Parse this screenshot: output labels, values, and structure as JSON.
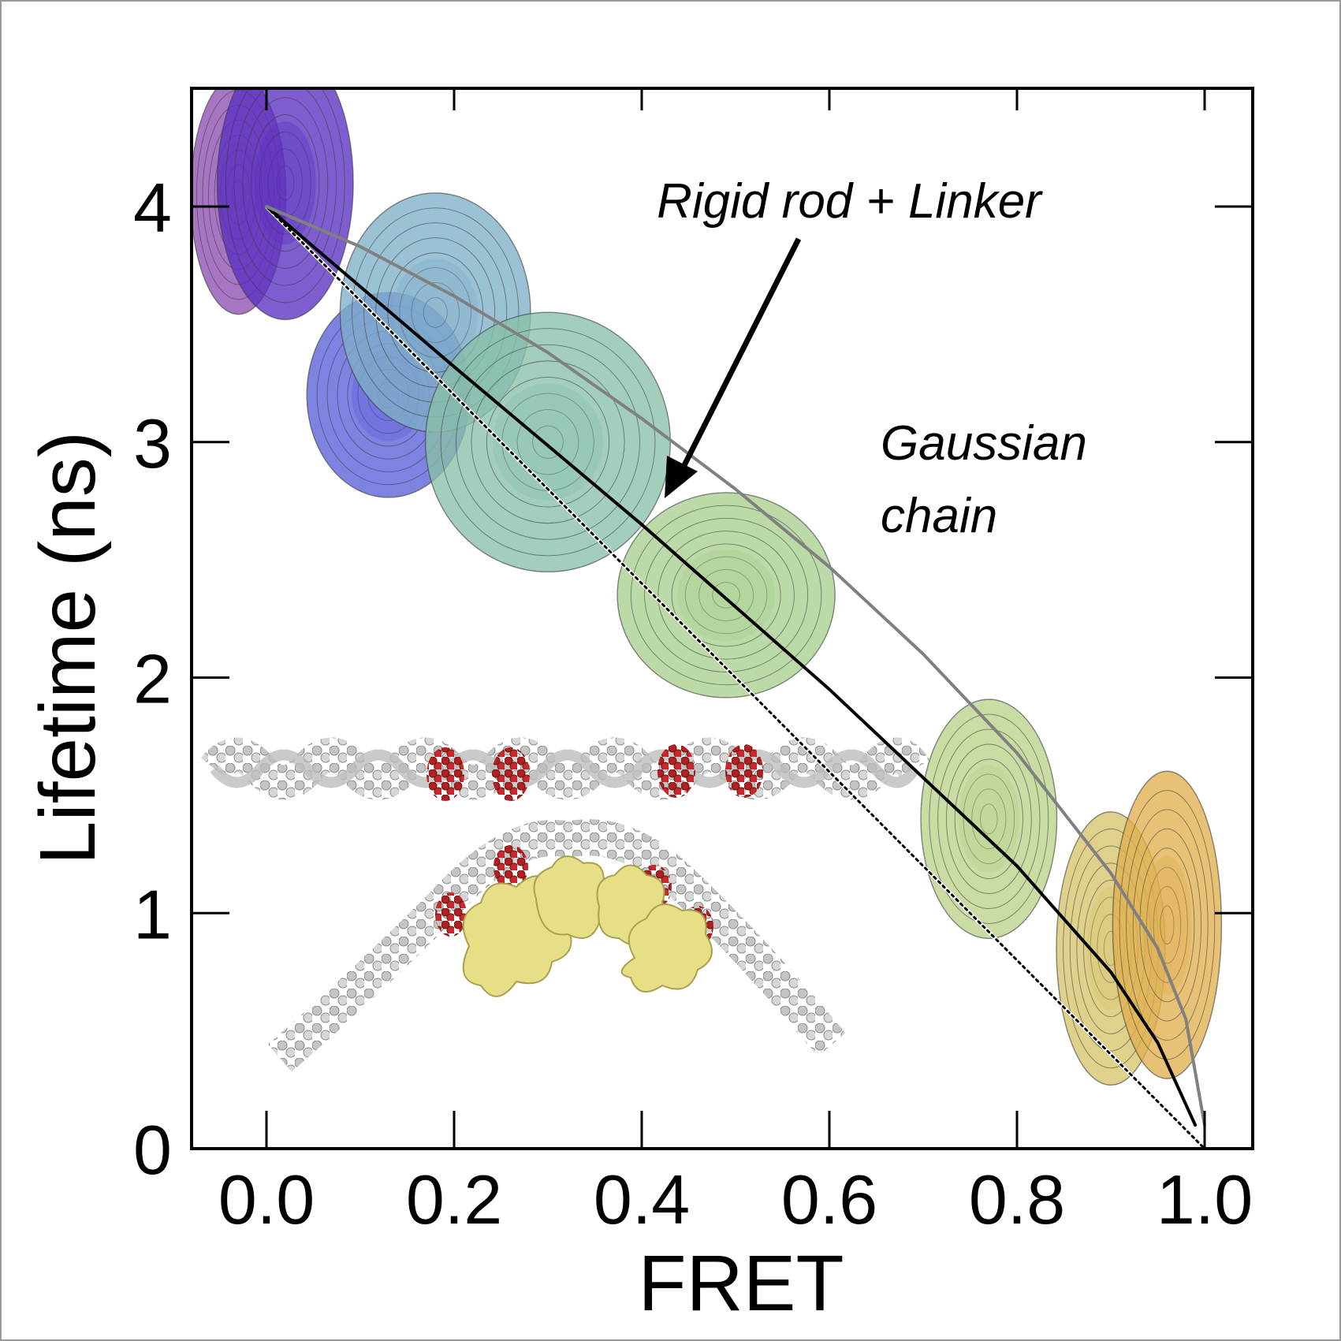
{
  "chart_data": {
    "type": "scatter",
    "title": "",
    "xlabel": "FRET",
    "ylabel": "Lifetime (ns)",
    "xlim": [
      -0.2,
      1.05
    ],
    "ylim": [
      0,
      4.5
    ],
    "x_ticks": [
      0.0,
      0.2,
      0.4,
      0.6,
      0.8,
      1.0
    ],
    "x_tick_labels": [
      "0.0",
      "0.2",
      "0.4",
      "0.6",
      "0.8",
      "1.0"
    ],
    "y_ticks": [
      0,
      1,
      2,
      3,
      4
    ],
    "y_tick_labels": [
      "0",
      "1",
      "2",
      "3",
      "4"
    ],
    "grid": false,
    "series": [
      {
        "style": "dotted",
        "color": "#000000",
        "x": [
          0.0,
          1.0
        ],
        "y": [
          4.0,
          0.0
        ]
      },
      {
        "name": "Rigid rod + Linker",
        "style": "solid",
        "color": "#000000",
        "x": [
          0.0,
          0.2,
          0.4,
          0.6,
          0.8,
          0.9,
          0.95,
          0.99
        ],
        "y": [
          4.0,
          3.32,
          2.65,
          1.95,
          1.2,
          0.75,
          0.45,
          0.1
        ]
      },
      {
        "name": "Gaussian chain",
        "style": "solid",
        "color": "#808080",
        "x": [
          0.0,
          0.1,
          0.2,
          0.3,
          0.4,
          0.5,
          0.6,
          0.7,
          0.8,
          0.9,
          0.95,
          0.98,
          1.0
        ],
        "y": [
          4.0,
          3.83,
          3.62,
          3.38,
          3.1,
          2.8,
          2.47,
          2.1,
          1.68,
          1.17,
          0.85,
          0.55,
          0.1
        ]
      }
    ],
    "populations": [
      {
        "color": "#8e4fb2",
        "center_fret": -0.03,
        "center_lifetime": 4.05,
        "sd_fret": 0.035,
        "sd_lifetime": 0.35
      },
      {
        "color": "#5a2fc0",
        "center_fret": 0.02,
        "center_lifetime": 4.1,
        "sd_fret": 0.05,
        "sd_lifetime": 0.4
      },
      {
        "color": "#5a5fd8",
        "center_fret": 0.13,
        "center_lifetime": 3.2,
        "sd_fret": 0.06,
        "sd_lifetime": 0.3
      },
      {
        "color": "#7fb0c8",
        "center_fret": 0.18,
        "center_lifetime": 3.55,
        "sd_fret": 0.07,
        "sd_lifetime": 0.35
      },
      {
        "color": "#88c0a8",
        "center_fret": 0.3,
        "center_lifetime": 3.0,
        "sd_fret": 0.09,
        "sd_lifetime": 0.38
      },
      {
        "color": "#a8cf8e",
        "center_fret": 0.49,
        "center_lifetime": 2.35,
        "sd_fret": 0.08,
        "sd_lifetime": 0.3
      },
      {
        "color": "#b8d28a",
        "center_fret": 0.77,
        "center_lifetime": 1.4,
        "sd_fret": 0.05,
        "sd_lifetime": 0.35
      },
      {
        "color": "#d6c46a",
        "center_fret": 0.9,
        "center_lifetime": 0.85,
        "sd_fret": 0.04,
        "sd_lifetime": 0.4
      },
      {
        "color": "#e0b050",
        "center_fret": 0.96,
        "center_lifetime": 0.95,
        "sd_fret": 0.04,
        "sd_lifetime": 0.45
      }
    ],
    "annotations": [
      {
        "text": "Rigid rod + Linker",
        "arrow_to": {
          "x": 0.42,
          "y": 2.75
        }
      },
      {
        "text_lines": [
          "Gaussian",
          "chain"
        ]
      }
    ]
  },
  "colors": {
    "axis": "#000000",
    "dna_backbone": "#b8b8b8",
    "dna_highlight": "#a01818",
    "protein": "#e8e080"
  },
  "icons": [
    "straight-dna-helix-image",
    "bent-dna-protein-complex-image"
  ]
}
